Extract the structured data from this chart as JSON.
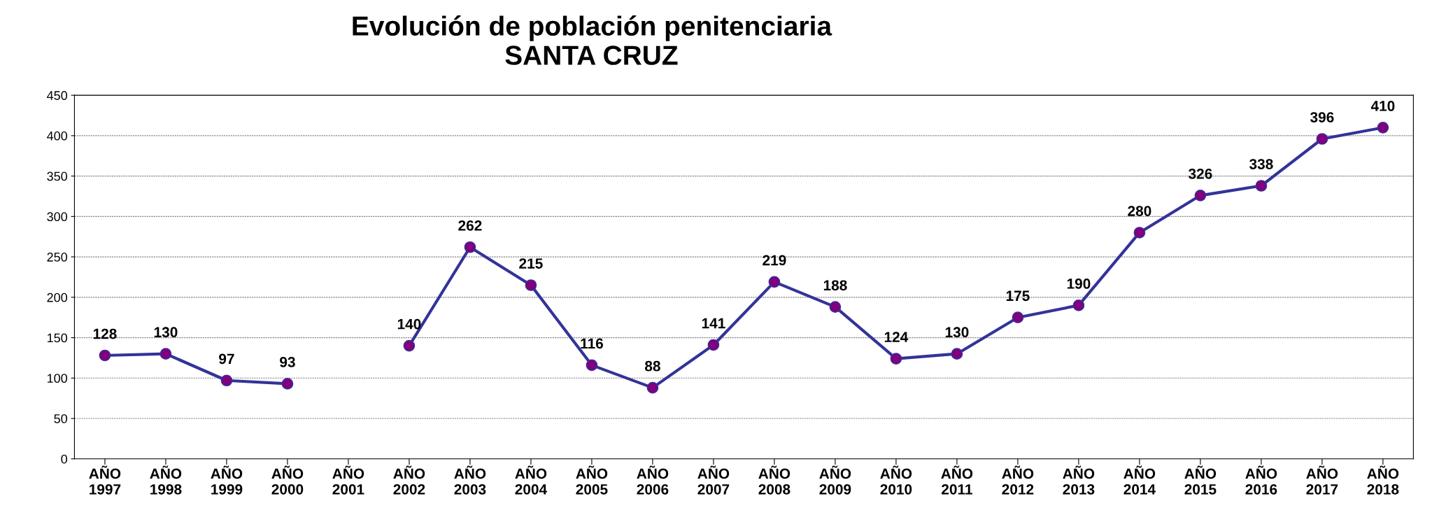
{
  "chart_data": {
    "type": "line",
    "title": "Evolución de población penitenciaria\nSANTA CRUZ",
    "categories": [
      "AÑO\n1997",
      "AÑO\n1998",
      "AÑO\n1999",
      "AÑO\n2000",
      "AÑO\n2001",
      "AÑO\n2002",
      "AÑO\n2003",
      "AÑO\n2004",
      "AÑO\n2005",
      "AÑO\n2006",
      "AÑO\n2007",
      "AÑO\n2008",
      "AÑO\n2009",
      "AÑO\n2010",
      "AÑO\n2011",
      "AÑO\n2012",
      "AÑO\n2013",
      "AÑO\n2014",
      "AÑO\n2015",
      "AÑO\n2016",
      "AÑO\n2017",
      "AÑO\n2018"
    ],
    "series": [
      {
        "color": "#333399",
        "colors": [
          "#800080",
          "#800080",
          "#800080",
          "#800080",
          "#800080",
          "#800080",
          "#800080",
          "#800080",
          "#800080",
          "#800080",
          "#800080",
          "#800080",
          "#800080",
          "#800080",
          "#800080",
          "#800080",
          "#800080",
          "#800080",
          "#800080",
          "#800080",
          "#800080",
          "#800080"
        ],
        "values": [
          128,
          130,
          97,
          93,
          null,
          140,
          262,
          215,
          116,
          88,
          141,
          219,
          188,
          124,
          130,
          175,
          190,
          280,
          326,
          338,
          396,
          410
        ]
      }
    ],
    "ylim": [
      0,
      450
    ],
    "yticks": [
      0,
      50,
      100,
      150,
      200,
      250,
      300,
      350,
      400,
      450
    ],
    "grid": "y",
    "marker": "circle",
    "line_style": "solid",
    "data_labels": true
  }
}
